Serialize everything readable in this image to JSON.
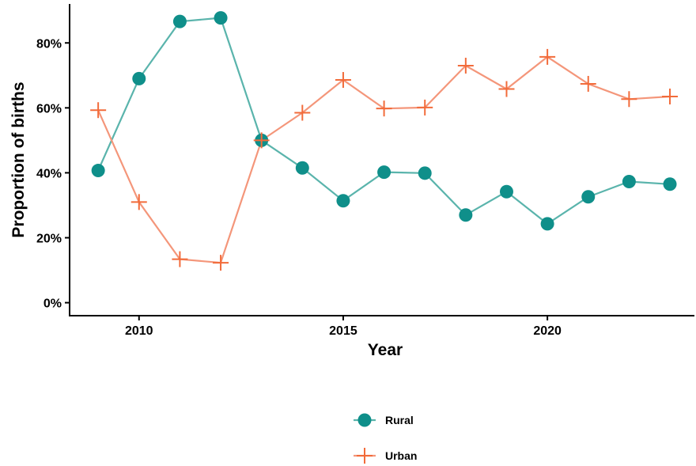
{
  "chart_data": {
    "type": "line",
    "title": "",
    "xlabel": "Year",
    "ylabel": "Proportion of births",
    "x": [
      2009,
      2010,
      2011,
      2012,
      2013,
      2014,
      2015,
      2016,
      2017,
      2018,
      2019,
      2020,
      2021,
      2022,
      2023
    ],
    "xlim": [
      2008.3,
      2023.6
    ],
    "ylim": [
      -0.04,
      0.92
    ],
    "x_ticks": [
      2010,
      2015,
      2020
    ],
    "x_tick_labels": [
      "2010",
      "2015",
      "2020"
    ],
    "y_ticks": [
      0,
      0.2,
      0.4,
      0.6,
      0.8
    ],
    "y_tick_labels": [
      "0%",
      "20%",
      "40%",
      "60%",
      "80%"
    ],
    "grid": false,
    "legend_position": "bottom",
    "series": [
      {
        "name": "Rural",
        "marker": "circle",
        "color": "#5ab4ac",
        "marker_color": "#0f8f8a",
        "values": [
          0.407,
          0.69,
          0.866,
          0.877,
          0.5,
          0.415,
          0.314,
          0.402,
          0.399,
          0.27,
          0.342,
          0.243,
          0.326,
          0.373,
          0.365
        ]
      },
      {
        "name": "Urban",
        "marker": "plus",
        "color": "#f4967a",
        "marker_color": "#f26b3a",
        "values": [
          0.593,
          0.31,
          0.134,
          0.123,
          0.5,
          0.585,
          0.686,
          0.598,
          0.601,
          0.73,
          0.658,
          0.757,
          0.674,
          0.627,
          0.635
        ]
      }
    ]
  }
}
